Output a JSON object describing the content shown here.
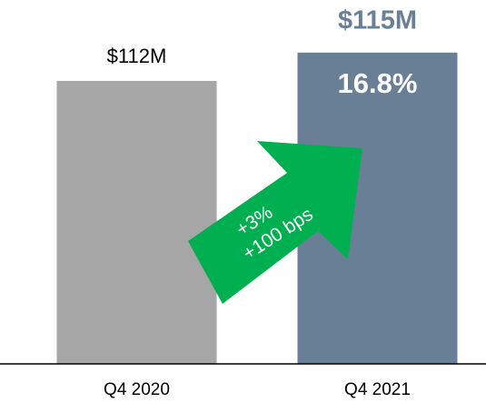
{
  "chart_data": {
    "type": "bar",
    "categories": [
      "Q4 2020",
      "Q4 2021"
    ],
    "values": [
      112,
      115
    ],
    "value_labels": [
      "$112M",
      "$115M"
    ],
    "colors": [
      "#a6a6a6",
      "#687f96"
    ],
    "ylim": [
      82,
      120
    ],
    "bar_annotation": "16.8%",
    "arrow_annotation": [
      "+3%",
      "+100 bps"
    ],
    "arrow_color": "#00b050"
  }
}
